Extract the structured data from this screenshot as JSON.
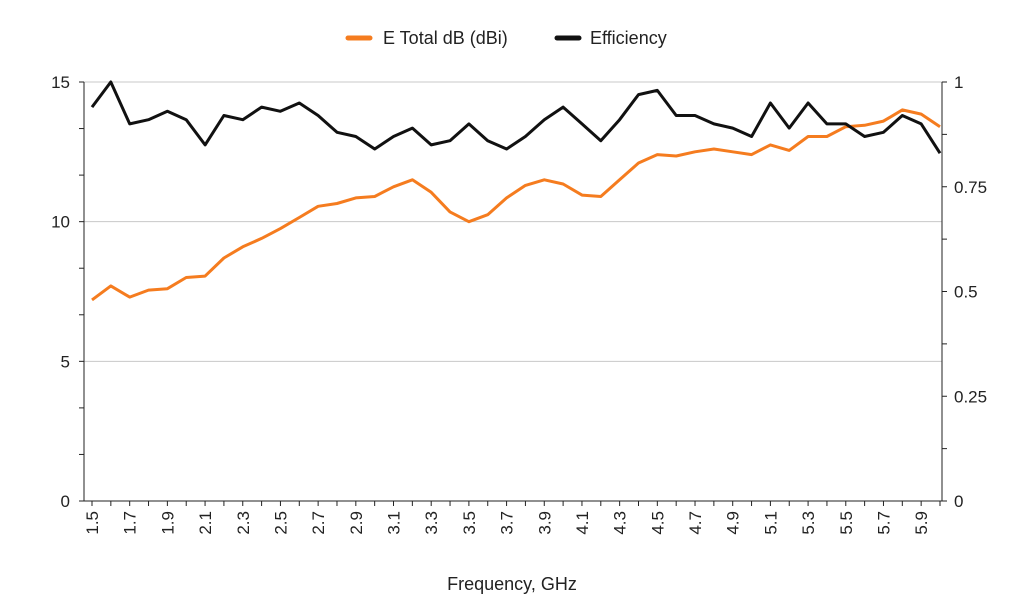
{
  "chart_data": {
    "type": "line",
    "xlabel": "Frequency, GHz",
    "legend_position": "top",
    "grid": true,
    "x": [
      1.5,
      1.6,
      1.7,
      1.8,
      1.9,
      2.0,
      2.1,
      2.2,
      2.3,
      2.4,
      2.5,
      2.6,
      2.7,
      2.8,
      2.9,
      3.0,
      3.1,
      3.2,
      3.3,
      3.4,
      3.5,
      3.6,
      3.7,
      3.8,
      3.9,
      4.0,
      4.1,
      4.2,
      4.3,
      4.4,
      4.5,
      4.6,
      4.7,
      4.8,
      4.9,
      5.0,
      5.1,
      5.2,
      5.3,
      5.4,
      5.5,
      5.6,
      5.7,
      5.8,
      5.9,
      6.0
    ],
    "x_tick_labels": [
      "1.5",
      "1.7",
      "1.9",
      "2.1",
      "2.3",
      "2.5",
      "2.7",
      "2.9",
      "3.1",
      "3.3",
      "3.5",
      "3.7",
      "3.9",
      "4.1",
      "4.3",
      "4.5",
      "4.7",
      "4.9",
      "5.1",
      "5.3",
      "5.5",
      "5.7",
      "5.9"
    ],
    "y_left": {
      "range": [
        0,
        15
      ],
      "tick_labels": [
        "0",
        "5",
        "10",
        "15"
      ]
    },
    "y_right": {
      "range": [
        0,
        1
      ],
      "tick_labels": [
        "0",
        "0.25",
        "0.5",
        "0.75",
        "1"
      ]
    },
    "series": [
      {
        "name": "E Total dB (dBi)",
        "color": "#f57c1f",
        "axis": "left",
        "values": [
          7.2,
          7.7,
          7.3,
          7.55,
          7.6,
          8.0,
          8.05,
          8.7,
          9.1,
          9.4,
          9.75,
          10.15,
          10.55,
          10.65,
          10.85,
          10.9,
          11.25,
          11.5,
          11.05,
          10.35,
          10.0,
          10.25,
          10.85,
          11.3,
          11.5,
          11.35,
          10.95,
          10.9,
          11.5,
          12.1,
          12.4,
          12.35,
          12.5,
          12.6,
          12.5,
          12.4,
          12.75,
          12.55,
          13.05,
          13.05,
          13.4,
          13.45,
          13.6,
          14.0,
          13.85,
          13.4
        ]
      },
      {
        "name": "Efficiency",
        "color": "#111111",
        "axis": "right",
        "values": [
          0.94,
          1.0,
          0.9,
          0.91,
          0.93,
          0.91,
          0.85,
          0.92,
          0.91,
          0.94,
          0.93,
          0.95,
          0.92,
          0.88,
          0.87,
          0.84,
          0.87,
          0.89,
          0.85,
          0.86,
          0.9,
          0.86,
          0.84,
          0.87,
          0.91,
          0.94,
          0.9,
          0.86,
          0.91,
          0.97,
          0.98,
          0.92,
          0.92,
          0.9,
          0.89,
          0.87,
          0.95,
          0.89,
          0.95,
          0.9,
          0.9,
          0.87,
          0.88,
          0.92,
          0.9,
          0.83
        ]
      }
    ]
  }
}
